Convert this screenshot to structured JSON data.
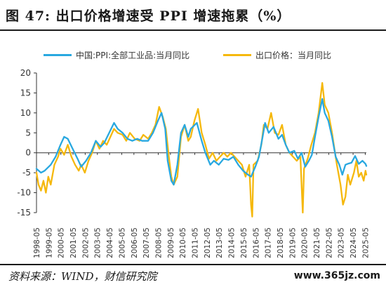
{
  "header": {
    "title": "图 47:  出口价格增速受 PPI 增速拖累（%）"
  },
  "footer": {
    "source": "资料来源：WIND，财信研究院",
    "watermark": "www.365jz.com"
  },
  "colors": {
    "ppi": "#29a8e0",
    "export": "#f5b80d",
    "axis": "#333333"
  },
  "chart_data": {
    "type": "line",
    "title": "出口价格增速受 PPI 增速拖累（%）",
    "xlabel": "",
    "ylabel": "",
    "ylim": [
      -15,
      20
    ],
    "yticks": [
      -15,
      -10,
      -5,
      0,
      5,
      10,
      15,
      20
    ],
    "grid": false,
    "legend_position": "top",
    "x_tick_labels": [
      "1998-05",
      "1999-05",
      "2000-05",
      "2001-05",
      "2002-05",
      "2003-05",
      "2004-05",
      "2005-05",
      "2006-05",
      "2007-05",
      "2008-05",
      "2009-05",
      "2010-05",
      "2011-05",
      "2012-05",
      "2013-05",
      "2014-05",
      "2015-05",
      "2016-05",
      "2017-05",
      "2018-05",
      "2019-05",
      "2020-05",
      "2021-05",
      "2022-05",
      "2023-05",
      "2024-05",
      "2025-05"
    ],
    "series": [
      {
        "name": "中国:PPI:全部工业品:当月同比",
        "points": [
          [
            1998.33,
            -4
          ],
          [
            1998.7,
            -5
          ],
          [
            1999.0,
            -4.5
          ],
          [
            1999.5,
            -3
          ],
          [
            1999.9,
            -1
          ],
          [
            2000.3,
            2
          ],
          [
            2000.6,
            4
          ],
          [
            2000.9,
            3.5
          ],
          [
            2001.3,
            1
          ],
          [
            2001.7,
            -1.5
          ],
          [
            2002.0,
            -3.5
          ],
          [
            2002.4,
            -2
          ],
          [
            2002.8,
            0
          ],
          [
            2003.2,
            3
          ],
          [
            2003.6,
            1.5
          ],
          [
            2003.9,
            2.5
          ],
          [
            2004.3,
            5
          ],
          [
            2004.7,
            7.5
          ],
          [
            2005.0,
            6
          ],
          [
            2005.4,
            5
          ],
          [
            2005.8,
            3.5
          ],
          [
            2006.2,
            3
          ],
          [
            2006.6,
            3.5
          ],
          [
            2007.0,
            3
          ],
          [
            2007.5,
            3
          ],
          [
            2007.9,
            5
          ],
          [
            2008.3,
            8
          ],
          [
            2008.6,
            10
          ],
          [
            2008.9,
            6
          ],
          [
            2009.1,
            -2
          ],
          [
            2009.4,
            -7
          ],
          [
            2009.6,
            -8
          ],
          [
            2009.9,
            -3
          ],
          [
            2010.2,
            5
          ],
          [
            2010.5,
            7
          ],
          [
            2010.8,
            4
          ],
          [
            2011.0,
            6
          ],
          [
            2011.5,
            7.5
          ],
          [
            2011.9,
            3
          ],
          [
            2012.2,
            0
          ],
          [
            2012.6,
            -3
          ],
          [
            2012.9,
            -2
          ],
          [
            2013.3,
            -3
          ],
          [
            2013.7,
            -1.5
          ],
          [
            2014.1,
            -1.8
          ],
          [
            2014.5,
            -1
          ],
          [
            2014.9,
            -3
          ],
          [
            2015.3,
            -4.5
          ],
          [
            2015.7,
            -5.5
          ],
          [
            2015.95,
            -6
          ],
          [
            2016.3,
            -3.5
          ],
          [
            2016.6,
            -1
          ],
          [
            2016.9,
            4
          ],
          [
            2017.1,
            7.5
          ],
          [
            2017.4,
            5
          ],
          [
            2017.8,
            6.5
          ],
          [
            2018.2,
            3.5
          ],
          [
            2018.5,
            4.5
          ],
          [
            2018.8,
            2
          ],
          [
            2019.1,
            0
          ],
          [
            2019.5,
            0.5
          ],
          [
            2019.8,
            -1.5
          ],
          [
            2020.1,
            0
          ],
          [
            2020.4,
            -3.5
          ],
          [
            2020.7,
            -2
          ],
          [
            2020.95,
            -0.5
          ],
          [
            2021.2,
            4
          ],
          [
            2021.5,
            9
          ],
          [
            2021.8,
            13.5
          ],
          [
            2022.0,
            10
          ],
          [
            2022.3,
            8
          ],
          [
            2022.6,
            4
          ],
          [
            2022.9,
            -1
          ],
          [
            2023.2,
            -3
          ],
          [
            2023.45,
            -5.5
          ],
          [
            2023.7,
            -3
          ],
          [
            2023.95,
            -2.7
          ],
          [
            2024.2,
            -2.5
          ],
          [
            2024.5,
            -0.8
          ],
          [
            2024.8,
            -2.8
          ],
          [
            2025.1,
            -2
          ],
          [
            2025.35,
            -2.8
          ],
          [
            2025.42,
            -3.3
          ]
        ]
      },
      {
        "name": "出口价格：当月同比",
        "points": [
          [
            1998.33,
            -5
          ],
          [
            1998.5,
            -8
          ],
          [
            1998.7,
            -9.5
          ],
          [
            1998.9,
            -7
          ],
          [
            1999.1,
            -10
          ],
          [
            1999.3,
            -6
          ],
          [
            1999.5,
            -8
          ],
          [
            1999.8,
            -3
          ],
          [
            2000.1,
            -1
          ],
          [
            2000.3,
            1
          ],
          [
            2000.6,
            -0.5
          ],
          [
            2000.9,
            2
          ],
          [
            2001.2,
            -1
          ],
          [
            2001.5,
            -3
          ],
          [
            2001.8,
            -4.5
          ],
          [
            2002.0,
            -3
          ],
          [
            2002.3,
            -5
          ],
          [
            2002.6,
            -2
          ],
          [
            2002.9,
            0
          ],
          [
            2003.2,
            3
          ],
          [
            2003.5,
            1
          ],
          [
            2003.8,
            3
          ],
          [
            2004.1,
            2
          ],
          [
            2004.4,
            4
          ],
          [
            2004.7,
            6
          ],
          [
            2005.0,
            5
          ],
          [
            2005.4,
            4.5
          ],
          [
            2005.7,
            3
          ],
          [
            2006.0,
            5
          ],
          [
            2006.4,
            3.5
          ],
          [
            2006.8,
            3
          ],
          [
            2007.1,
            4.5
          ],
          [
            2007.5,
            3.5
          ],
          [
            2007.8,
            5
          ],
          [
            2008.1,
            7
          ],
          [
            2008.4,
            11.5
          ],
          [
            2008.7,
            9
          ],
          [
            2008.95,
            6
          ],
          [
            2009.2,
            -1
          ],
          [
            2009.4,
            -6
          ],
          [
            2009.6,
            -8
          ],
          [
            2009.9,
            -6
          ],
          [
            2010.2,
            4
          ],
          [
            2010.5,
            7
          ],
          [
            2010.8,
            3
          ],
          [
            2011.0,
            4
          ],
          [
            2011.3,
            8
          ],
          [
            2011.6,
            11
          ],
          [
            2011.9,
            5
          ],
          [
            2012.2,
            2
          ],
          [
            2012.5,
            -1.5
          ],
          [
            2012.8,
            0
          ],
          [
            2013.1,
            -2
          ],
          [
            2013.4,
            -1
          ],
          [
            2013.7,
            0
          ],
          [
            2014.0,
            -1
          ],
          [
            2014.3,
            0
          ],
          [
            2014.6,
            -1
          ],
          [
            2014.9,
            -2
          ],
          [
            2015.2,
            -3
          ],
          [
            2015.5,
            -6
          ],
          [
            2015.8,
            -3
          ],
          [
            2015.95,
            -13
          ],
          [
            2016.05,
            -16
          ],
          [
            2016.15,
            -3
          ],
          [
            2016.5,
            -2
          ],
          [
            2016.8,
            2
          ],
          [
            2017.0,
            7
          ],
          [
            2017.3,
            6
          ],
          [
            2017.6,
            10
          ],
          [
            2017.9,
            5
          ],
          [
            2018.2,
            4.5
          ],
          [
            2018.5,
            7
          ],
          [
            2018.8,
            2
          ],
          [
            2019.1,
            0
          ],
          [
            2019.4,
            -1
          ],
          [
            2019.7,
            -2
          ],
          [
            2020.0,
            -1
          ],
          [
            2020.2,
            -15
          ],
          [
            2020.3,
            -4
          ],
          [
            2020.6,
            -1.5
          ],
          [
            2020.9,
            2
          ],
          [
            2021.2,
            5
          ],
          [
            2021.5,
            10
          ],
          [
            2021.8,
            17.5
          ],
          [
            2022.0,
            12
          ],
          [
            2022.3,
            10
          ],
          [
            2022.6,
            5
          ],
          [
            2022.8,
            1
          ],
          [
            2023.0,
            -3
          ],
          [
            2023.3,
            -8
          ],
          [
            2023.5,
            -13
          ],
          [
            2023.7,
            -11
          ],
          [
            2023.9,
            -5.5
          ],
          [
            2024.1,
            -8
          ],
          [
            2024.4,
            -5
          ],
          [
            2024.6,
            -2
          ],
          [
            2024.8,
            -6
          ],
          [
            2025.0,
            -5
          ],
          [
            2025.2,
            -7
          ],
          [
            2025.35,
            -4.5
          ],
          [
            2025.42,
            -5.5
          ]
        ]
      }
    ]
  }
}
